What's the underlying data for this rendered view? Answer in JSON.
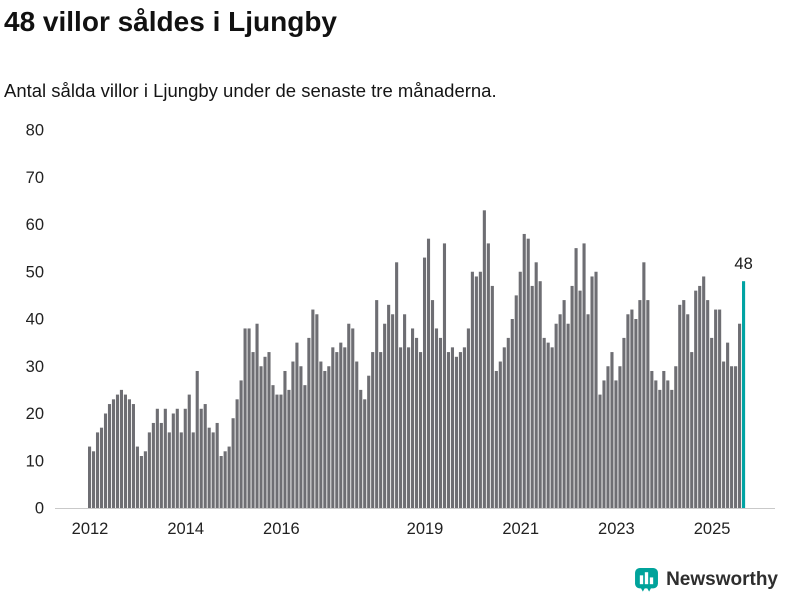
{
  "header": {
    "title": "48 villor såldes i Ljungby",
    "subtitle": "Antal sålda villor i Ljungby under de senaste tre månaderna."
  },
  "chart_data": {
    "type": "bar",
    "title": "48 villor såldes i Ljungby",
    "subtitle": "Antal sålda villor i Ljungby under de senaste tre månaderna.",
    "x_unit": "month",
    "x_range": [
      "2012-01",
      "2025-09"
    ],
    "values": [
      13,
      12,
      16,
      17,
      20,
      22,
      23,
      24,
      25,
      24,
      23,
      22,
      13,
      11,
      12,
      16,
      18,
      21,
      18,
      21,
      16,
      20,
      21,
      16,
      21,
      24,
      16,
      29,
      21,
      22,
      17,
      16,
      18,
      11,
      12,
      13,
      19,
      23,
      27,
      38,
      38,
      33,
      39,
      30,
      32,
      33,
      26,
      24,
      24,
      29,
      25,
      31,
      35,
      30,
      26,
      36,
      42,
      41,
      31,
      29,
      30,
      34,
      33,
      35,
      34,
      39,
      38,
      31,
      25,
      23,
      28,
      33,
      44,
      33,
      39,
      43,
      41,
      52,
      34,
      41,
      34,
      38,
      36,
      33,
      53,
      57,
      44,
      38,
      36,
      56,
      33,
      34,
      32,
      33,
      34,
      38,
      50,
      49,
      50,
      63,
      56,
      47,
      29,
      31,
      34,
      36,
      40,
      45,
      50,
      58,
      57,
      47,
      52,
      48,
      36,
      35,
      34,
      39,
      41,
      44,
      39,
      47,
      55,
      46,
      56,
      41,
      49,
      50,
      24,
      27,
      30,
      33,
      27,
      30,
      36,
      41,
      42,
      40,
      44,
      52,
      44,
      29,
      27,
      25,
      29,
      27,
      25,
      30,
      43,
      44,
      41,
      33,
      46,
      47,
      49,
      44,
      36,
      42,
      42,
      31,
      35,
      30,
      30,
      39,
      48
    ],
    "highlight": {
      "index": 164,
      "value": 48,
      "label": "48",
      "color": "#00a3a3"
    },
    "bar_color": "#6e6e73",
    "ylim": [
      0,
      80
    ],
    "yticks": [
      0,
      10,
      20,
      30,
      40,
      50,
      60,
      70,
      80
    ],
    "xticks": [
      {
        "label": "2012",
        "month_index": 0
      },
      {
        "label": "2014",
        "month_index": 24
      },
      {
        "label": "2016",
        "month_index": 48
      },
      {
        "label": "2019",
        "month_index": 84
      },
      {
        "label": "2021",
        "month_index": 108
      },
      {
        "label": "2023",
        "month_index": 132
      },
      {
        "label": "2025",
        "month_index": 156
      }
    ],
    "grid": false,
    "legend": false
  },
  "footer": {
    "brand": "Newsworthy"
  },
  "colors": {
    "accent": "#00a3a3",
    "bar": "#6e6e73",
    "axis_line": "#c9c9c9",
    "tick_text": "#222222"
  }
}
